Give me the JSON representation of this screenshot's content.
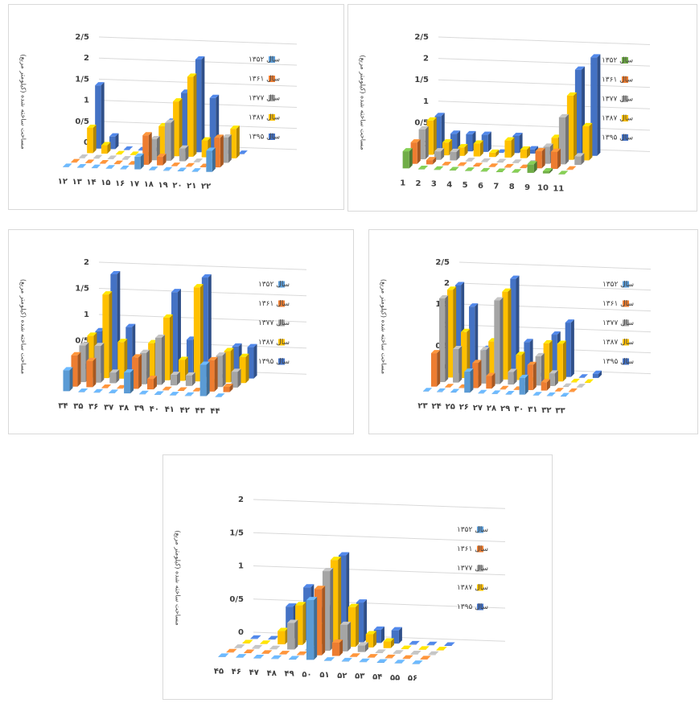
{
  "chart_data": [
    {
      "type": "bar3d",
      "y_label": "مساحت ساخته شده (کیلومتر مربع)",
      "categories": [
        "۱۲",
        "۱۳",
        "۱۴",
        "۱۵",
        "۱۶",
        "۱۷",
        "۱۸",
        "۱۹",
        "۲۰",
        "۲۱",
        "۲۲"
      ],
      "series": [
        {
          "name": "سال ۱۳۵۲",
          "color": "#5b9bd5",
          "values": [
            0,
            0,
            0,
            0,
            0,
            0.3,
            0,
            0,
            0,
            0,
            0.5
          ]
        },
        {
          "name": "سال ۱۳۶۱",
          "color": "#ed7d31",
          "values": [
            0,
            0,
            0,
            0,
            0,
            0.7,
            0.2,
            0,
            0,
            0,
            0.7
          ]
        },
        {
          "name": "سال ۱۳۷۷",
          "color": "#a5a5a5",
          "values": [
            0,
            0,
            0,
            0,
            0,
            0.5,
            0.9,
            0.3,
            0,
            0,
            0.6
          ]
        },
        {
          "name": "سال ۱۳۸۷",
          "color": "#ffc000",
          "values": [
            0.6,
            0.2,
            0,
            0,
            0,
            0.7,
            1.3,
            1.9,
            0.4,
            0,
            0.7
          ]
        },
        {
          "name": "سال ۱۳۹۵",
          "color": "#4472c4",
          "values": [
            1.5,
            0.3,
            0,
            0,
            0,
            0.7,
            1.4,
            2.2,
            1.3,
            0,
            0
          ]
        }
      ],
      "ylim": [
        0,
        2.5
      ],
      "yticks": [
        0,
        {
          "value": 0.5,
          "label": "0/5"
        },
        1,
        {
          "value": 1.5,
          "label": "1/5"
        },
        2,
        {
          "value": 2.5,
          "label": "2/5"
        }
      ]
    },
    {
      "type": "bar3d",
      "y_label": "مساحت ساخته شده (کیلومتر مربع)",
      "categories": [
        "1",
        "2",
        "3",
        "4",
        "5",
        "6",
        "7",
        "8",
        "9",
        "10",
        "11"
      ],
      "series": [
        {
          "name": "سال ۱۳۵۲",
          "color": "#70ad47",
          "values": [
            0.4,
            0,
            0,
            0,
            0,
            0,
            0,
            0,
            0.2,
            0.05,
            0
          ]
        },
        {
          "name": "سال ۱۳۶۱",
          "color": "#ed7d31",
          "values": [
            0.5,
            0.1,
            0,
            0,
            0,
            0,
            0,
            0,
            0.4,
            0.4,
            0
          ]
        },
        {
          "name": "سال ۱۳۷۷",
          "color": "#a5a5a5",
          "values": [
            0.7,
            0.2,
            0.2,
            0,
            0,
            0,
            0,
            0,
            0.4,
            1.1,
            0.2
          ]
        },
        {
          "name": "سال ۱۳۸۷",
          "color": "#ffc000",
          "values": [
            0.8,
            0.3,
            0.2,
            0.3,
            0.1,
            0.4,
            0.2,
            0,
            0.5,
            1.5,
            0.8
          ]
        },
        {
          "name": "سال ۱۳۹۵",
          "color": "#4472c4",
          "values": [
            0.8,
            0.4,
            0.4,
            0.4,
            0,
            0.4,
            0.1,
            0,
            0.5,
            2,
            2.3
          ]
        }
      ],
      "ylim": [
        0,
        2.5
      ],
      "yticks": [
        0,
        {
          "value": 0.5,
          "label": "0/5"
        },
        1,
        {
          "value": 1.5,
          "label": "1/5"
        },
        2,
        {
          "value": 2.5,
          "label": "2/5"
        }
      ]
    },
    {
      "type": "bar3d",
      "y_label": "مساحت ساخته شده (کیلومتر مربع)",
      "categories": [
        "۳۴",
        "۳۵",
        "۳۶",
        "۳۷",
        "۳۸",
        "۳۹",
        "۴۰",
        "۴۱",
        "۴۲",
        "۴۳",
        "۴۴"
      ],
      "series": [
        {
          "name": "سال ۱۳۵۲",
          "color": "#5b9bd5",
          "values": [
            0.4,
            0,
            0,
            0,
            0.4,
            0,
            0,
            0,
            0,
            0.6,
            0
          ]
        },
        {
          "name": "سال ۱۳۶۱",
          "color": "#ed7d31",
          "values": [
            0.6,
            0.5,
            0,
            0,
            0.6,
            0.2,
            0,
            0,
            0,
            0.6,
            0.1
          ]
        },
        {
          "name": "سال ۱۳۷۷",
          "color": "#a5a5a5",
          "values": [
            0.7,
            0.7,
            0.2,
            0,
            0.6,
            0.9,
            0.2,
            0.2,
            0,
            0.6,
            0.3
          ]
        },
        {
          "name": "سال ۱۳۸۷",
          "color": "#ffc000",
          "values": [
            0.8,
            1.6,
            0.7,
            0,
            0.7,
            1.2,
            0.4,
            1.8,
            0,
            0.6,
            0.5
          ]
        },
        {
          "name": "سال ۱۳۹۵",
          "color": "#4472c4",
          "values": [
            0.8,
            1.9,
            0.9,
            0,
            0.7,
            1.6,
            0.7,
            1.9,
            0,
            0.6,
            0.6
          ]
        }
      ],
      "ylim": [
        0,
        2
      ],
      "yticks": [
        0,
        {
          "value": 0.5,
          "label": "0/5"
        },
        1,
        {
          "value": 1.5,
          "label": "1/5"
        },
        2
      ]
    },
    {
      "type": "bar3d",
      "y_label": "مساحت ساخته شده (کیلومتر مربع)",
      "categories": [
        "۲۳",
        "۲۴",
        "۲۵",
        "۲۶",
        "۲۷",
        "۲۸",
        "۲۹",
        "۳۰",
        "۳۱",
        "۳۲",
        "۳۳"
      ],
      "series": [
        {
          "name": "سال ۱۳۵۲",
          "color": "#5b9bd5",
          "values": [
            0,
            0,
            0,
            0.5,
            0,
            0,
            0,
            0.4,
            0,
            0,
            0
          ]
        },
        {
          "name": "سال ۱۳۶۱",
          "color": "#ed7d31",
          "values": [
            0.8,
            0,
            0,
            0.6,
            0.3,
            0,
            0,
            0.6,
            0.2,
            0,
            0
          ]
        },
        {
          "name": "سال ۱۳۷۷",
          "color": "#a5a5a5",
          "values": [
            2,
            0.8,
            0,
            0.8,
            2,
            0.3,
            0,
            0.7,
            0.3,
            0,
            0
          ]
        },
        {
          "name": "سال ۱۳۸۷",
          "color": "#ffc000",
          "values": [
            2.1,
            1.1,
            0,
            0.9,
            2.1,
            0.6,
            0,
            0.9,
            0.9,
            0,
            0
          ]
        },
        {
          "name": "سال ۱۳۹۵",
          "color": "#4472c4",
          "values": [
            2.1,
            1.6,
            0.6,
            1,
            2.3,
            0.8,
            0,
            1,
            1.3,
            0,
            0.1
          ]
        }
      ],
      "ylim": [
        0,
        2.5
      ],
      "yticks": [
        0,
        {
          "value": 0.5,
          "label": "0/5"
        },
        1,
        {
          "value": 1.5,
          "label": "1/5"
        },
        2,
        {
          "value": 2.5,
          "label": "2/5"
        }
      ]
    },
    {
      "type": "bar3d",
      "y_label": "مساحت ساخته شده (کیلومتر مربع)",
      "categories": [
        "۴۵",
        "۴۶",
        "۴۷",
        "۴۸",
        "۴۹",
        "۵۰",
        "۵۱",
        "۵۲",
        "۵۳",
        "۵۴",
        "۵۵",
        "۵۶"
      ],
      "series": [
        {
          "name": "سال ۱۳۵۲",
          "color": "#5b9bd5",
          "values": [
            0,
            0,
            0,
            0,
            0,
            0.9,
            0,
            0,
            0,
            0,
            0,
            0
          ]
        },
        {
          "name": "سال ۱۳۶۱",
          "color": "#ed7d31",
          "values": [
            0,
            0,
            0,
            0,
            0,
            1,
            0.2,
            0,
            0,
            0,
            0,
            0
          ]
        },
        {
          "name": "سال ۱۳۷۷",
          "color": "#a5a5a5",
          "values": [
            0,
            0,
            0,
            0.4,
            0,
            1.2,
            0.4,
            0.1,
            0,
            0,
            0,
            0
          ]
        },
        {
          "name": "سال ۱۳۸۷",
          "color": "#ffc000",
          "values": [
            0,
            0,
            0.2,
            0.6,
            0.3,
            1.3,
            0.6,
            0.2,
            0.1,
            0,
            0,
            0
          ]
        },
        {
          "name": "سال ۱۳۹۵",
          "color": "#4472c4",
          "values": [
            0,
            0,
            0.5,
            0.8,
            0.5,
            1.3,
            0.6,
            0.2,
            0.2,
            0,
            0,
            0
          ]
        }
      ],
      "ylim": [
        0,
        2
      ],
      "yticks": [
        0,
        {
          "value": 0.5,
          "label": "0/5"
        },
        1,
        {
          "value": 1.5,
          "label": "1/5"
        },
        2
      ]
    }
  ]
}
